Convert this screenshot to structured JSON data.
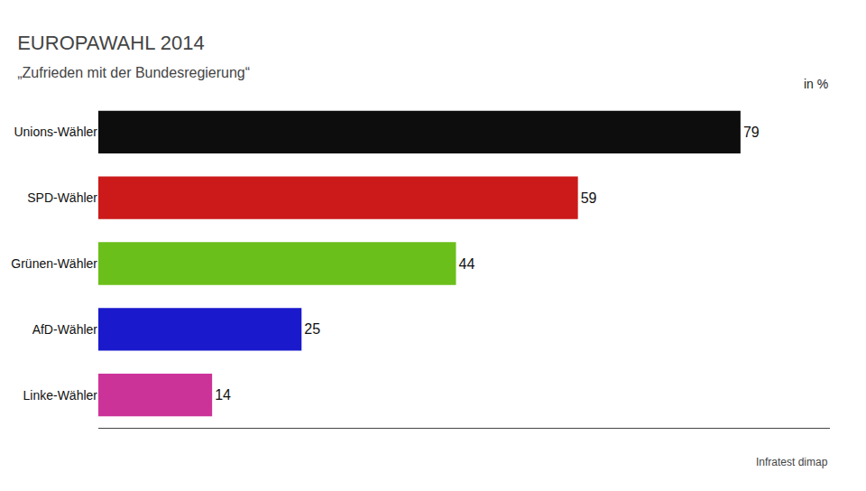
{
  "chart_data": {
    "type": "bar",
    "orientation": "horizontal",
    "title": "EUROPAWAHL 2014",
    "subtitle": "„Zufrieden mit der Bundesregierung“",
    "annotations": [
      "in %",
      "Infratest dimap"
    ],
    "categories": [
      "Unions-Wähler",
      "SPD-Wähler",
      "Grünen-Wähler",
      "AfD-Wähler",
      "Linke-Wähler"
    ],
    "values": [
      79,
      59,
      44,
      25,
      14
    ],
    "colors": [
      "#0d0d0d",
      "#cc1a1a",
      "#6abf1a",
      "#1a1acc",
      "#cc3399"
    ],
    "xlim": [
      0,
      90
    ],
    "grid": false,
    "data_labels": true,
    "tick_labels": "y"
  }
}
